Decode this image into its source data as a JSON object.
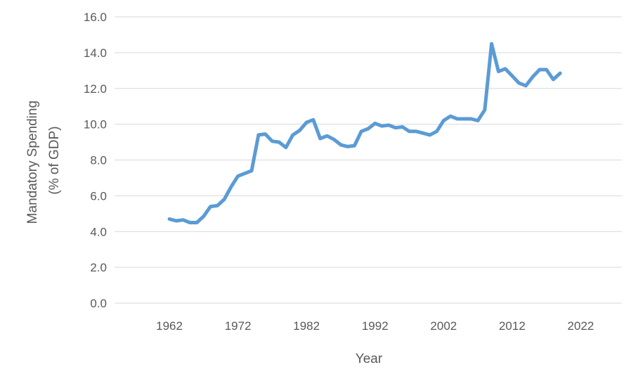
{
  "chart_data": {
    "type": "line",
    "title": "",
    "xlabel": "Year",
    "ylabel_line1": "Mandatory Spending",
    "ylabel_line2": "(% of GDP)",
    "xlim": [
      1954,
      2028
    ],
    "ylim": [
      0,
      16
    ],
    "x_ticks": [
      1962,
      1972,
      1982,
      1992,
      2002,
      2012,
      2022
    ],
    "y_ticks": [
      "0.0",
      "2.0",
      "4.0",
      "6.0",
      "8.0",
      "10.0",
      "12.0",
      "14.0",
      "16.0"
    ],
    "grid": "horizontal",
    "legend": "none",
    "series": [
      {
        "color": "#5b9bd5",
        "x": [
          1962,
          1963,
          1964,
          1965,
          1966,
          1967,
          1968,
          1969,
          1970,
          1971,
          1972,
          1973,
          1974,
          1975,
          1976,
          1977,
          1978,
          1979,
          1980,
          1981,
          1982,
          1983,
          1984,
          1985,
          1986,
          1987,
          1988,
          1989,
          1990,
          1991,
          1992,
          1993,
          1994,
          1995,
          1996,
          1997,
          1998,
          1999,
          2000,
          2001,
          2002,
          2003,
          2004,
          2005,
          2006,
          2007,
          2008,
          2009,
          2010,
          2011,
          2012,
          2013,
          2014,
          2015,
          2016,
          2017,
          2018,
          2019
        ],
        "values": [
          4.7,
          4.6,
          4.65,
          4.5,
          4.5,
          4.85,
          5.4,
          5.45,
          5.8,
          6.5,
          7.1,
          7.25,
          7.4,
          9.4,
          9.45,
          9.05,
          9.0,
          8.7,
          9.4,
          9.65,
          10.1,
          10.25,
          9.2,
          9.35,
          9.15,
          8.85,
          8.75,
          8.8,
          9.6,
          9.75,
          10.05,
          9.9,
          9.95,
          9.8,
          9.85,
          9.6,
          9.6,
          9.5,
          9.4,
          9.6,
          10.2,
          10.45,
          10.3,
          10.3,
          10.3,
          10.2,
          10.8,
          14.5,
          12.95,
          13.1,
          12.7,
          12.3,
          12.15,
          12.65,
          13.05,
          13.05,
          12.5,
          12.85
        ]
      }
    ]
  }
}
